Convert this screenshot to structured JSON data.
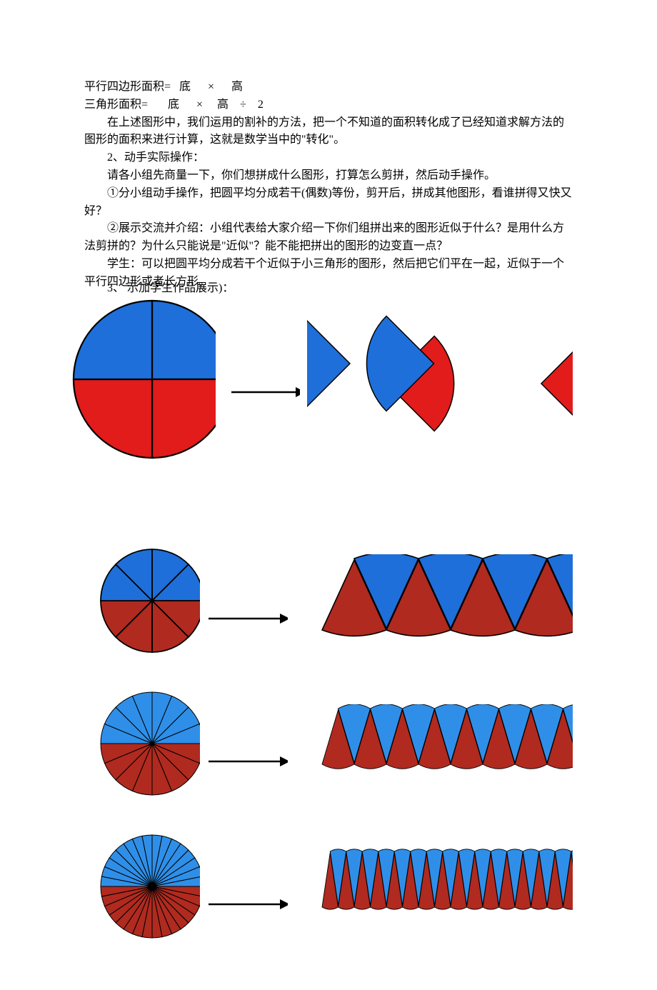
{
  "colors": {
    "blue": "#1e6fd9",
    "blue_light": "#2f8fe8",
    "red": "#e21b1b",
    "red_dark": "#b02a1f",
    "stroke": "#000000",
    "arrow": "#000000",
    "bg": "#ffffff"
  },
  "text": {
    "formula1": "平行四边形面积=   底      ×      高",
    "formula2": "三角形面积=       底      ×     高    ÷    2",
    "p1": "在上述图形中，我们运用的割补的方法，把一个不知道的面积转化成了已经知道求解方法的图形的面积来进行计算，这就是数学当中的\"转化\"。",
    "p2": "2、动手实际操作：",
    "p3": "请各小组先商量一下，你们想拼成什么图形，打算怎么剪拼，然后动手操作。",
    "p4": "①分小组动手操作，把圆平均分成若干(偶数)等份，剪开后，拼成其他图形，看谁拼得又快又好？",
    "p5": "②展示交流并介绍：小组代表给大家介绍一下你们组拼出来的图形近似于什么？是用什么方法剪拼的？为什么只能说是\"近似\"？能不能把拼出的图形的边变直一点？",
    "p6": "学生：可以把圆平均分成若干个近似于小三角形的图形，然后把它们平在一起，近似于一个平行四边形或者长方形。",
    "p7_overlay": "3、              示加学生作品展示)："
  },
  "diagrams": [
    {
      "sectors": 4,
      "circle_r": 110,
      "rearr_w": 400,
      "rearr_h": 170
    },
    {
      "sectors": 8,
      "circle_r": 72,
      "rearr_w": 360,
      "rearr_h": 112
    },
    {
      "sectors": 16,
      "circle_r": 72,
      "rearr_w": 360,
      "rearr_h": 90
    },
    {
      "sectors": 32,
      "circle_r": 72,
      "rearr_w": 360,
      "rearr_h": 90
    }
  ]
}
